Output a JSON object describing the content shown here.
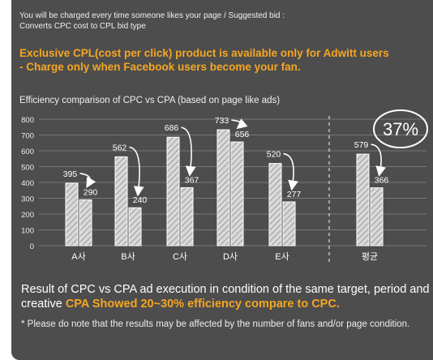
{
  "intro": {
    "line1": "You will be charged every time someone likes your page / Suggested bid :",
    "line2": "Converts CPC cost to CPL bid type"
  },
  "headline": {
    "line1": "Exclusive CPL(cost per click) product is available only for Adwitt users",
    "line2": "- Charge only when Facebook users become your fan."
  },
  "result": {
    "text_part": "Result of CPC vs CPA ad execution in condition of the same target, period and creative ",
    "highlight": "CPA Showed 20~30% efficiency compare to CPC."
  },
  "note": "* Please do note that the results may be affected by the number of fans and/or page condition.",
  "colors": {
    "panel": "#4d4d4d",
    "accent": "#f5a623",
    "bar_fill": "#d9d9d9"
  },
  "chart_data": {
    "type": "bar",
    "title": "Efficiency comparison of CPC vs CPA (based on page like ads)",
    "categories": [
      "A사",
      "B사",
      "C사",
      "D사",
      "E사",
      "평균"
    ],
    "series": [
      {
        "values": [
          395,
          562,
          686,
          733,
          520,
          579
        ]
      },
      {
        "values": [
          290,
          240,
          367,
          656,
          277,
          366
        ]
      }
    ],
    "ylim": [
      0,
      800
    ],
    "yticks": [
      0,
      100,
      200,
      300,
      400,
      500,
      600,
      700,
      800
    ],
    "grid": true,
    "annotation": "37%"
  }
}
